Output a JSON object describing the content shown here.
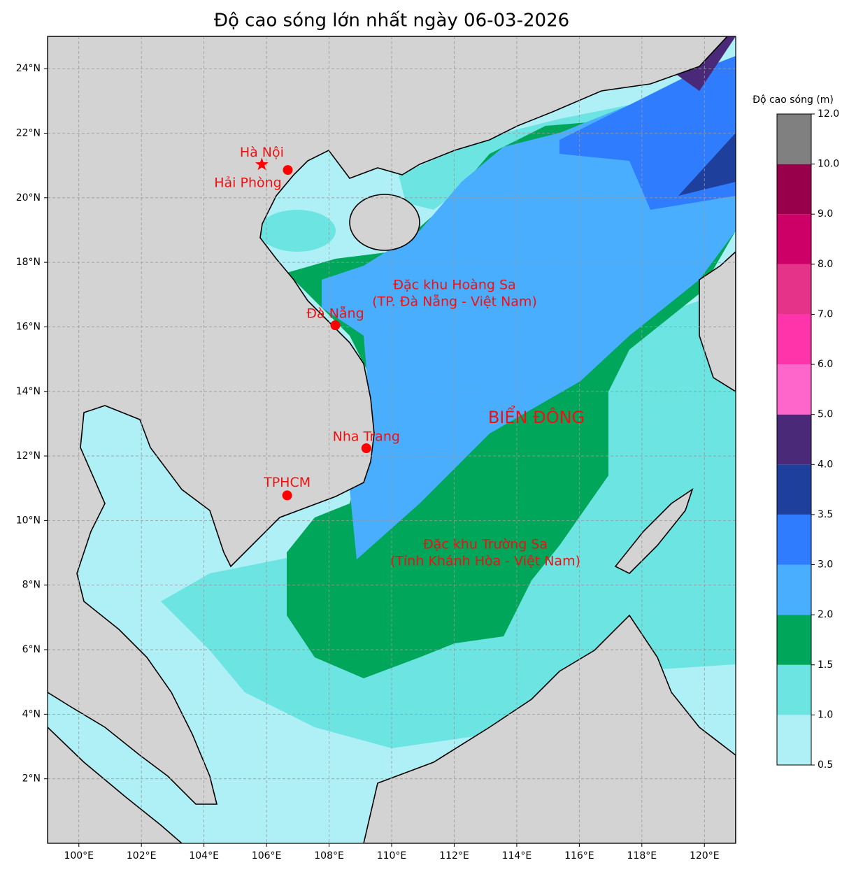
{
  "chart_data": {
    "type": "map",
    "title": "Độ cao sóng lớn nhất ngày 06-03-2026",
    "xlim": [
      99,
      121
    ],
    "ylim": [
      0,
      25
    ],
    "xticks": [
      {
        "value": 100,
        "label": "100°E"
      },
      {
        "value": 102,
        "label": "102°E"
      },
      {
        "value": 104,
        "label": "104°E"
      },
      {
        "value": 106,
        "label": "106°E"
      },
      {
        "value": 108,
        "label": "108°E"
      },
      {
        "value": 110,
        "label": "110°E"
      },
      {
        "value": 112,
        "label": "112°E"
      },
      {
        "value": 114,
        "label": "114°E"
      },
      {
        "value": 116,
        "label": "116°E"
      },
      {
        "value": 118,
        "label": "118°E"
      },
      {
        "value": 120,
        "label": "120°E"
      }
    ],
    "yticks": [
      {
        "value": 2,
        "label": "2°N"
      },
      {
        "value": 4,
        "label": "4°N"
      },
      {
        "value": 6,
        "label": "6°N"
      },
      {
        "value": 8,
        "label": "8°N"
      },
      {
        "value": 10,
        "label": "10°N"
      },
      {
        "value": 12,
        "label": "12°N"
      },
      {
        "value": 14,
        "label": "14°N"
      },
      {
        "value": 16,
        "label": "16°N"
      },
      {
        "value": 18,
        "label": "18°N"
      },
      {
        "value": 20,
        "label": "20°N"
      },
      {
        "value": 22,
        "label": "22°N"
      },
      {
        "value": 24,
        "label": "24°N"
      }
    ],
    "grid": true,
    "cities": [
      {
        "name": "Hà Nội",
        "lon": 105.85,
        "lat": 21.03,
        "marker": "star",
        "color": "#ff0000"
      },
      {
        "name": "Hải Phòng",
        "lon": 106.68,
        "lat": 20.86,
        "marker": "dot",
        "color": "#ff0000"
      },
      {
        "name": "Đà Nẵng",
        "lon": 108.2,
        "lat": 16.05,
        "marker": "dot",
        "color": "#ff0000"
      },
      {
        "name": "Nha Trang",
        "lon": 109.19,
        "lat": 12.24,
        "marker": "dot",
        "color": "#ff0000"
      },
      {
        "name": "TPHCM",
        "lon": 106.66,
        "lat": 10.78,
        "marker": "dot",
        "color": "#ff0000"
      }
    ],
    "annotations": [
      {
        "lines": [
          "Đặc khu Hoàng Sa",
          "(TP. Đà Nẵng - Việt Nam)"
        ]
      },
      {
        "lines": [
          "BIỂN ĐÔNG"
        ]
      },
      {
        "lines": [
          "Đặc khu Trường Sa",
          "(Tỉnh Khánh Hòa - Việt Nam)"
        ]
      }
    ],
    "colorbar": {
      "label": "Độ cao sóng (m)",
      "ticks": [
        {
          "value": 0.5,
          "label": "0.5"
        },
        {
          "value": 1,
          "label": "1.0"
        },
        {
          "value": 1.5,
          "label": "1.5"
        },
        {
          "value": 2,
          "label": "2.0"
        },
        {
          "value": 3,
          "label": "3.0"
        },
        {
          "value": 3.5,
          "label": "3.5"
        },
        {
          "value": 4,
          "label": "4.0"
        },
        {
          "value": 5,
          "label": "5.0"
        },
        {
          "value": 6,
          "label": "6.0"
        },
        {
          "value": 7,
          "label": "7.0"
        },
        {
          "value": 8,
          "label": "8.0"
        },
        {
          "value": 9,
          "label": "9.0"
        },
        {
          "value": 10,
          "label": "10.0"
        },
        {
          "value": 12,
          "label": "12.0"
        }
      ],
      "colors": [
        "#aff0f7",
        "#6be4e2",
        "#00a65a",
        "#4aaeff",
        "#2f7cfe",
        "#1f3f9c",
        "#4a2a78",
        "#ff66cc",
        "#ff33aa",
        "#e6338a",
        "#cc0066",
        "#99004c",
        "#808080"
      ]
    }
  }
}
